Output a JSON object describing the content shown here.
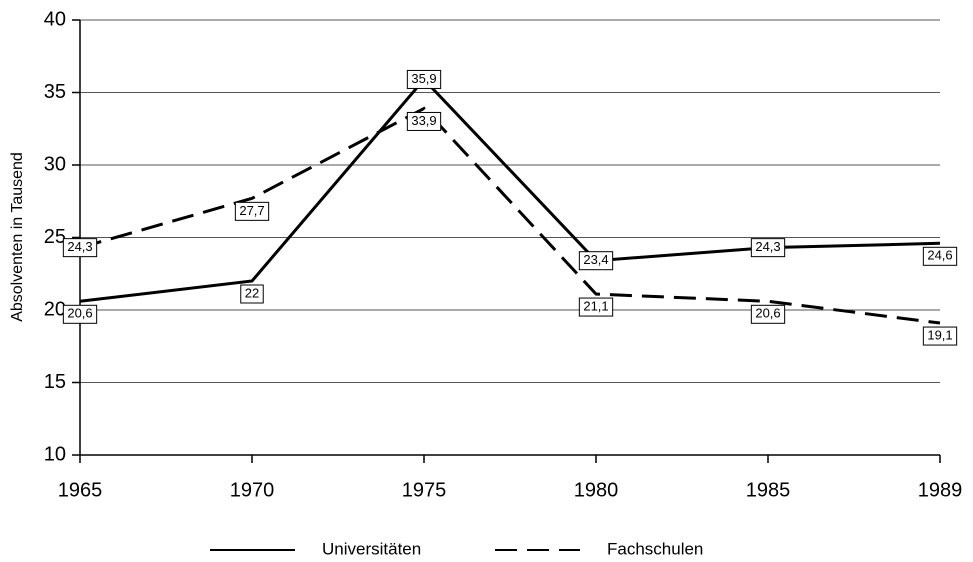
{
  "chart_data": {
    "type": "line",
    "y_label": "Absolventen in Tausend",
    "categories": [
      "1965",
      "1970",
      "1975",
      "1980",
      "1985",
      "1989"
    ],
    "series": [
      {
        "name": "Universitäten",
        "color": "#000000",
        "style": "solid",
        "values": [
          20.6,
          22,
          35.9,
          23.4,
          24.3,
          24.6
        ],
        "value_labels": [
          "20,6",
          "22",
          "35,9",
          "23,4",
          "24,3",
          "24,6"
        ]
      },
      {
        "name": "Fachschulen",
        "color": "#000000",
        "style": "dashed",
        "values": [
          24.3,
          27.7,
          33.9,
          21.1,
          20.6,
          19.1
        ],
        "value_labels": [
          "24,3",
          "27,7",
          "33,9",
          "21,1",
          "20,6",
          "19,1"
        ]
      }
    ],
    "ylim": [
      10,
      40
    ],
    "yticks": [
      10,
      15,
      20,
      25,
      30,
      35,
      40
    ],
    "grid": true,
    "legend": "bottom"
  }
}
